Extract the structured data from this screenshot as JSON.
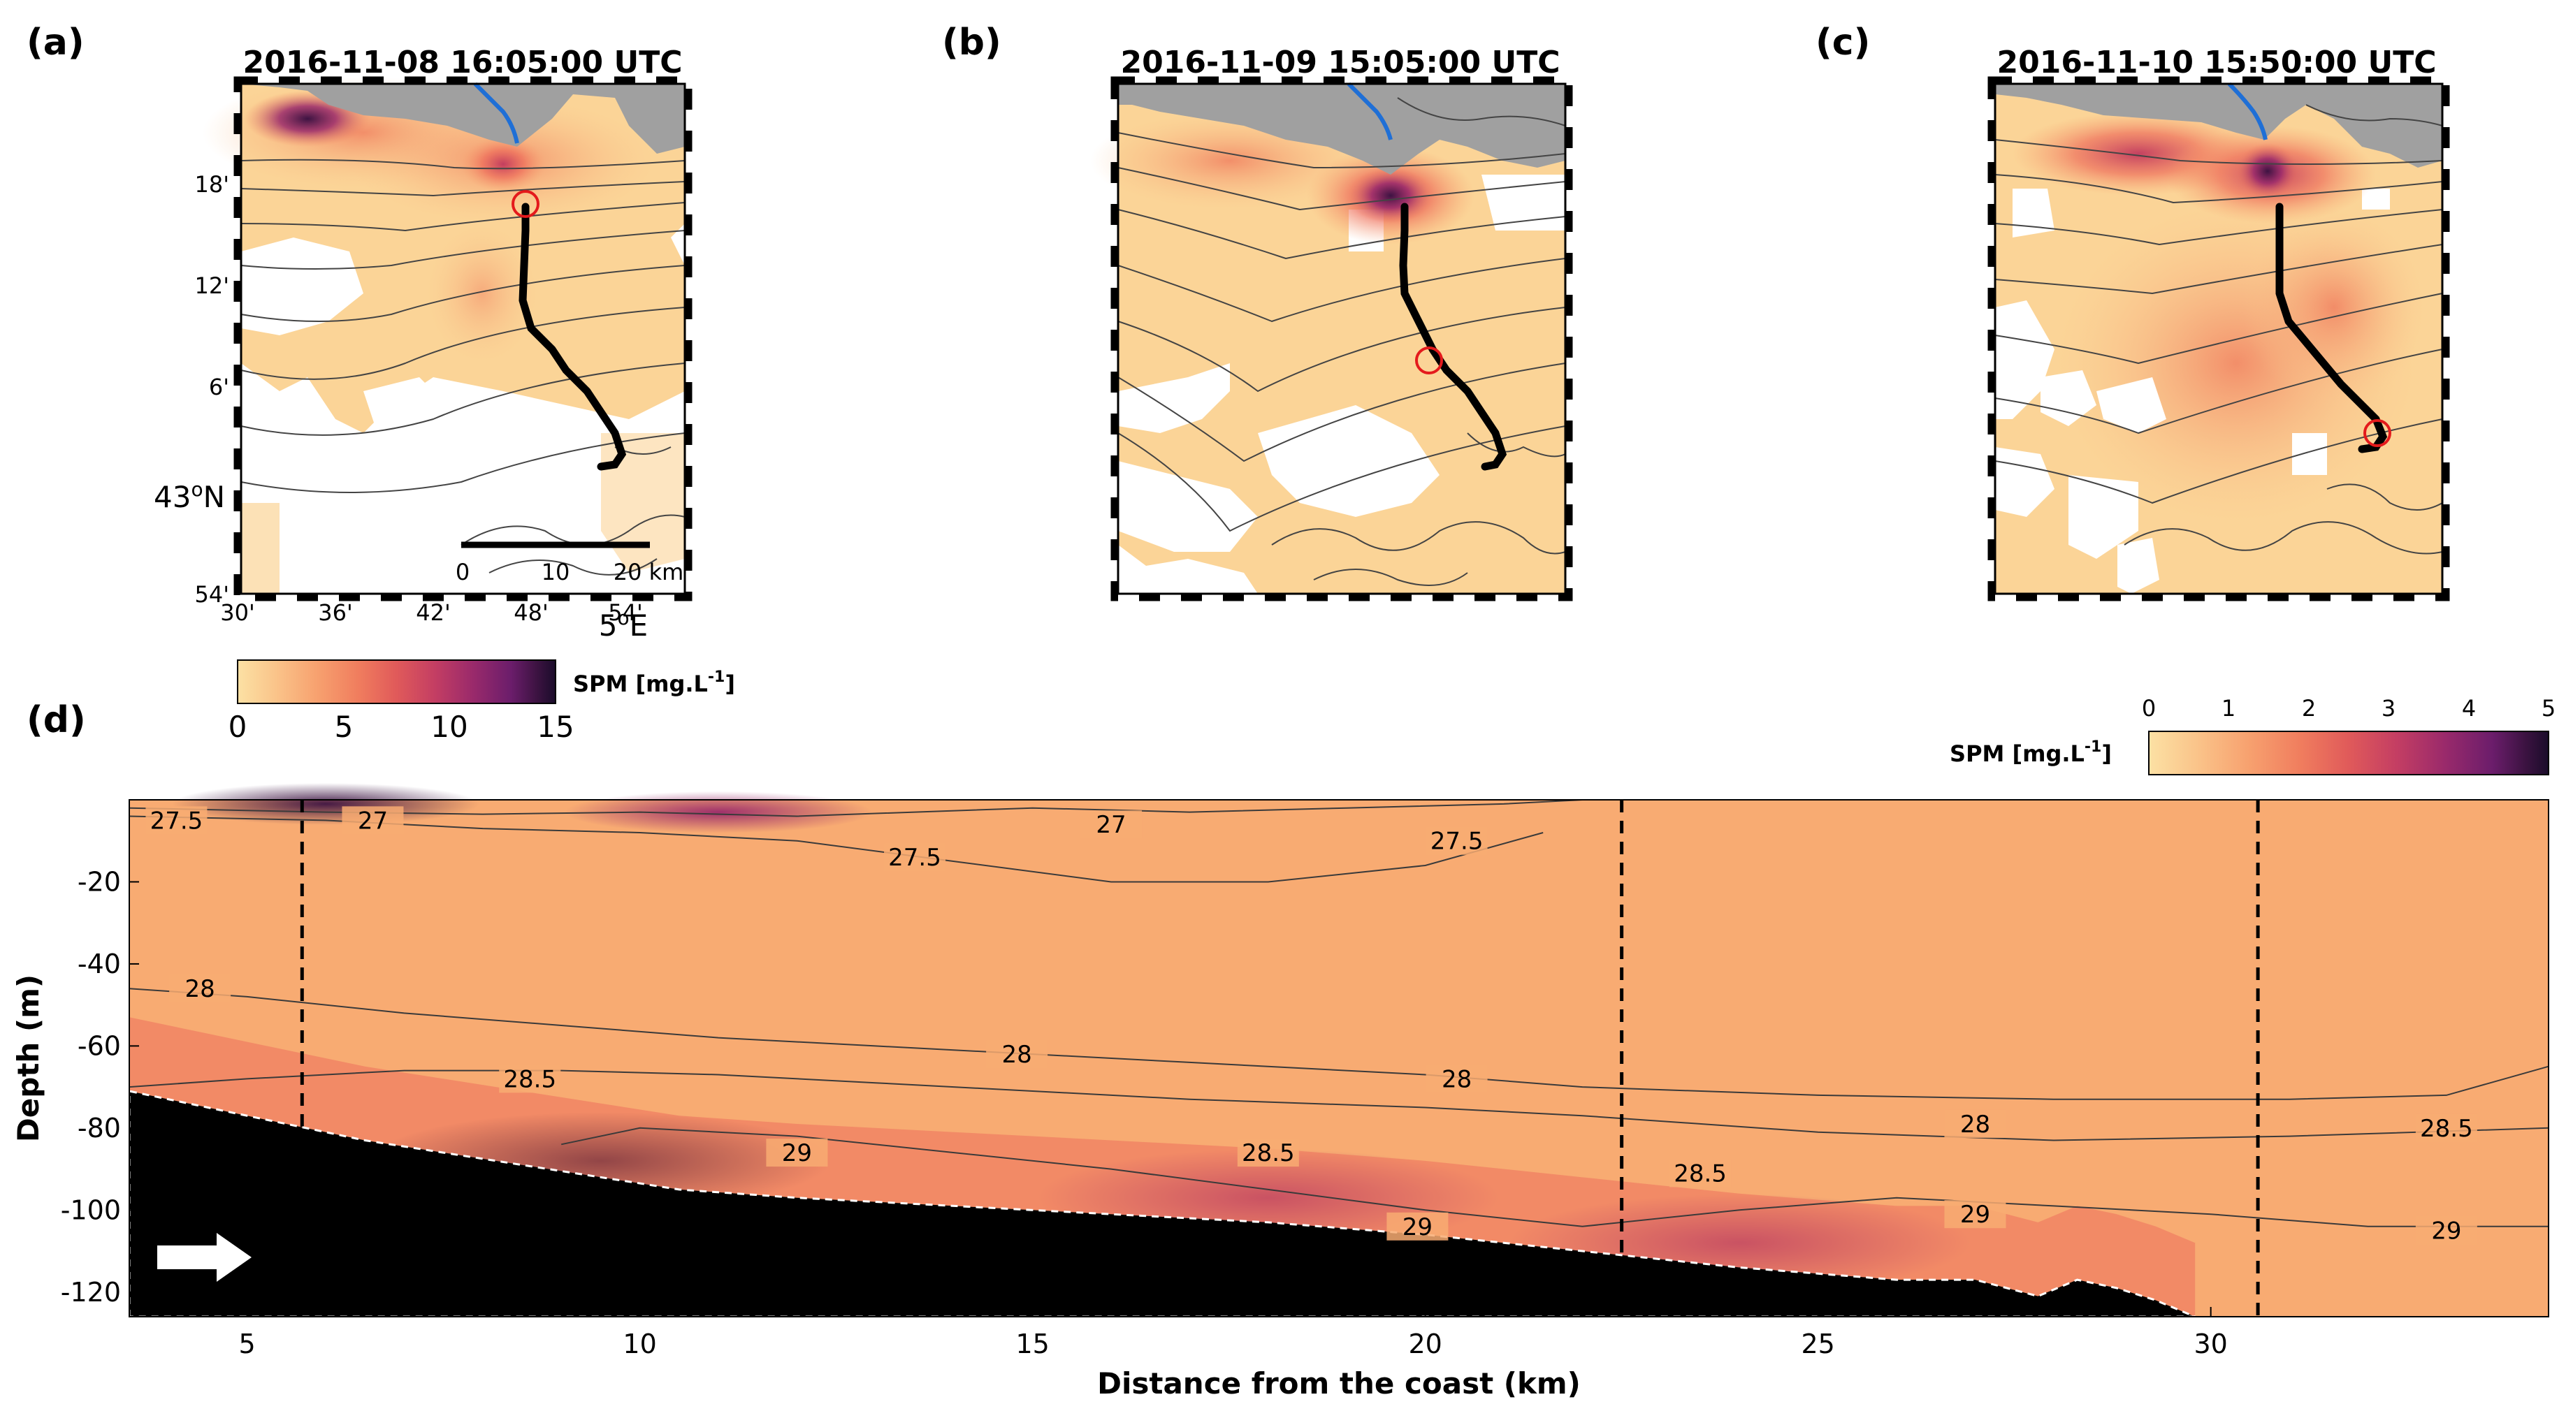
{
  "panels": {
    "a": {
      "label": "(a)",
      "title": "2016-11-08 16:05:00 UTC"
    },
    "b": {
      "label": "(b)",
      "title": "2016-11-09 15:05:00 UTC"
    },
    "c": {
      "label": "(c)",
      "title": "2016-11-10 15:50:00 UTC"
    },
    "d": {
      "label": "(d)"
    }
  },
  "map_axes": {
    "lat_ticks": [
      "18'",
      "12'",
      "6'",
      "43°N",
      "54'"
    ],
    "lon_ticks": [
      "30'",
      "36'",
      "42'",
      "48'",
      "54'",
      "5°E"
    ],
    "lat_main": "43",
    "lat_main_sup": "o",
    "lat_main_suffix": "N",
    "lon_main": "5",
    "lon_main_sup": "o",
    "lon_main_suffix": "E",
    "scalebar": [
      "0",
      "10",
      "20 km"
    ]
  },
  "colorbar_maps": {
    "label_pre": "SPM [mg.L",
    "label_sup": "-1",
    "label_post": "]",
    "ticks": [
      "0",
      "5",
      "10",
      "15"
    ],
    "min": 0,
    "max": 15
  },
  "colorbar_section": {
    "label_pre": "SPM [mg.L",
    "label_sup": "-1",
    "label_post": "]",
    "ticks": [
      "0",
      "1",
      "2",
      "3",
      "4",
      "5"
    ],
    "min": 0,
    "max": 5
  },
  "colors": {
    "cmap": [
      "#fce1a4",
      "#fac48a",
      "#f7a16f",
      "#f07d5e",
      "#e05a5a",
      "#c43e63",
      "#9a2a6b",
      "#6b1d6b",
      "#3d1342",
      "#1a0c2a"
    ],
    "section_bg": "#f8ab72",
    "land": "#a0a0a0",
    "river": "#1f6fd6",
    "track": "#000000",
    "marker": "#e41a1c"
  },
  "chart_data": {
    "type": "heatmap",
    "title": "",
    "xlabel": "Distance from the coast (km)",
    "ylabel": "Depth (m)",
    "xlim": [
      3.5,
      34.3
    ],
    "ylim": [
      -126,
      0
    ],
    "x_ticks": [
      5,
      10,
      15,
      20,
      25,
      30
    ],
    "x_tick_labels": [
      "5",
      "10",
      "15",
      "20",
      "25",
      "30"
    ],
    "y_ticks": [
      -20,
      -40,
      -60,
      -80,
      -100,
      -120
    ],
    "y_tick_labels": [
      "-20",
      "-40",
      "-60",
      "-80",
      "-100",
      "-120"
    ],
    "vertical_lines_km": [
      5.7,
      22.5,
      30.6
    ],
    "seabed": {
      "x": [
        3.5,
        4.5,
        5.5,
        6.5,
        7.5,
        8.5,
        9.5,
        10.5,
        12,
        14,
        16,
        18,
        20,
        22,
        24,
        26,
        27,
        27.8,
        28.3,
        28.8,
        29.3,
        29.8
      ],
      "depth": [
        -71,
        -75,
        -79,
        -83,
        -86,
        -89,
        -92,
        -95,
        -97,
        -99,
        -101,
        -103,
        -106,
        -110,
        -114,
        -117,
        -117,
        -121,
        -117,
        -119,
        -122,
        -126
      ]
    },
    "isopycnals": [
      {
        "name": "27",
        "x": [
          3.5,
          6,
          8,
          10,
          12,
          15,
          17,
          19,
          21,
          22
        ],
        "depth": [
          -2,
          -3,
          -3.5,
          -3,
          -4,
          -2,
          -3,
          -2,
          -1,
          0
        ]
      },
      {
        "name": "27.5",
        "x": [
          3.5,
          6,
          8,
          10,
          12,
          14,
          16,
          18,
          20,
          21.5
        ],
        "depth": [
          -4,
          -5,
          -7,
          -8,
          -10,
          -15,
          -20,
          -20,
          -16,
          -8
        ]
      },
      {
        "name": "28",
        "x": [
          3.5,
          5,
          7,
          9,
          11,
          13,
          15,
          17,
          20,
          22,
          25,
          28,
          31,
          33,
          34.3
        ],
        "depth": [
          -46,
          -48,
          -52,
          -55,
          -58,
          -60,
          -62,
          -64,
          -67,
          -70,
          -72,
          -73,
          -73,
          -72,
          -65
        ]
      },
      {
        "name": "28.5",
        "x": [
          3.5,
          5,
          7,
          9,
          11,
          13,
          15,
          17,
          20,
          22,
          25,
          28,
          31,
          34.3
        ],
        "depth": [
          -70,
          -68,
          -66,
          -66,
          -67,
          -69,
          -71,
          -73,
          -75,
          -77,
          -81,
          -83,
          -82,
          -80
        ]
      },
      {
        "name": "29",
        "x": [
          9,
          10,
          12,
          14,
          16,
          18,
          20,
          22,
          24,
          26,
          28,
          30,
          32,
          34.3
        ],
        "depth": [
          -84,
          -80,
          -82,
          -86,
          -90,
          -95,
          -100,
          -104,
          -100,
          -97,
          -99,
          -101,
          -104,
          -104
        ]
      }
    ],
    "isopycnal_labels": [
      {
        "text": "27.5",
        "x": 4.1,
        "depth": -5
      },
      {
        "text": "27",
        "x": 6.6,
        "depth": -5
      },
      {
        "text": "27",
        "x": 16.0,
        "depth": -6
      },
      {
        "text": "27.5",
        "x": 13.5,
        "depth": -14
      },
      {
        "text": "27.5",
        "x": 20.4,
        "depth": -10
      },
      {
        "text": "28",
        "x": 4.4,
        "depth": -46
      },
      {
        "text": "28",
        "x": 14.8,
        "depth": -62
      },
      {
        "text": "28.5",
        "x": 8.6,
        "depth": -68
      },
      {
        "text": "28",
        "x": 20.4,
        "depth": -68
      },
      {
        "text": "29",
        "x": 12.0,
        "depth": -86
      },
      {
        "text": "28.5",
        "x": 18.0,
        "depth": -86
      },
      {
        "text": "28",
        "x": 27.0,
        "depth": -79
      },
      {
        "text": "28.5",
        "x": 23.5,
        "depth": -91
      },
      {
        "text": "28.5",
        "x": 33.0,
        "depth": -80
      },
      {
        "text": "29",
        "x": 19.9,
        "depth": -104
      },
      {
        "text": "29",
        "x": 27.0,
        "depth": -101
      },
      {
        "text": "29",
        "x": 33.0,
        "depth": -105
      }
    ],
    "spm_features": [
      {
        "desc": "surface plume near coast",
        "x": 6,
        "depth": -1,
        "spm": 4.5
      },
      {
        "desc": "surface patch",
        "x": 11,
        "depth": -3,
        "spm": 3.5
      },
      {
        "desc": "bottom nepheloid layer",
        "x": 9.5,
        "depth": -88,
        "spm": 4.8
      },
      {
        "desc": "bottom nepheloid layer",
        "x": 18,
        "depth": -97,
        "spm": 3.3
      },
      {
        "desc": "bottom nepheloid layer",
        "x": 24,
        "depth": -108,
        "spm": 3.2
      }
    ]
  }
}
